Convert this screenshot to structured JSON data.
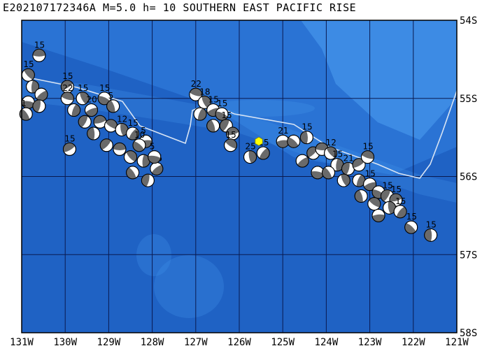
{
  "title": "E202107172346A M=5.0 h= 10 SOUTHERN EAST PACIFIC RISE",
  "x_ticks": [
    "131W",
    "130W",
    "129W",
    "128W",
    "127W",
    "126W",
    "125W",
    "124W",
    "123W",
    "122W",
    "121W"
  ],
  "y_ticks": [
    "54S",
    "55S",
    "56S",
    "57S",
    "58S"
  ],
  "colors": {
    "ocean_deep": "#1f62c4",
    "ocean_mid": "#2a73d4",
    "ocean_shallow": "#3d8be4",
    "grid": "#0a1a50",
    "ridge": "#d8e4f4",
    "beachball_dark": "#6a6a6a",
    "event_marker": "#ffff00"
  },
  "event": {
    "lon": -125.55,
    "lat": -55.55
  },
  "mechanisms": [
    {
      "lon": -130.6,
      "lat": -54.45,
      "label": "15"
    },
    {
      "lon": -130.85,
      "lat": -54.7,
      "label": "15"
    },
    {
      "lon": -130.75,
      "lat": -54.85,
      "label": ""
    },
    {
      "lon": -130.55,
      "lat": -54.95,
      "label": ""
    },
    {
      "lon": -130.85,
      "lat": -55.05,
      "label": ""
    },
    {
      "lon": -130.9,
      "lat": -55.2,
      "label": "1"
    },
    {
      "lon": -130.6,
      "lat": -55.1,
      "label": ""
    },
    {
      "lon": -129.95,
      "lat": -54.85,
      "label": "15"
    },
    {
      "lon": -129.95,
      "lat": -55.0,
      "label": "22"
    },
    {
      "lon": -129.6,
      "lat": -55.0,
      "label": "15"
    },
    {
      "lon": -129.8,
      "lat": -55.15,
      "label": ""
    },
    {
      "lon": -129.4,
      "lat": -55.15,
      "label": "20"
    },
    {
      "lon": -129.1,
      "lat": -55.0,
      "label": "15"
    },
    {
      "lon": -128.9,
      "lat": -55.1,
      "label": "5"
    },
    {
      "lon": -129.55,
      "lat": -55.3,
      "label": ""
    },
    {
      "lon": -129.2,
      "lat": -55.3,
      "label": ""
    },
    {
      "lon": -128.95,
      "lat": -55.35,
      "label": ""
    },
    {
      "lon": -128.7,
      "lat": -55.4,
      "label": "12"
    },
    {
      "lon": -128.45,
      "lat": -55.45,
      "label": "15"
    },
    {
      "lon": -128.15,
      "lat": -55.55,
      "label": "5"
    },
    {
      "lon": -128.3,
      "lat": -55.6,
      "label": "10"
    },
    {
      "lon": -129.35,
      "lat": -55.45,
      "label": ""
    },
    {
      "lon": -129.05,
      "lat": -55.6,
      "label": ""
    },
    {
      "lon": -128.75,
      "lat": -55.65,
      "label": ""
    },
    {
      "lon": -128.5,
      "lat": -55.75,
      "label": ""
    },
    {
      "lon": -128.2,
      "lat": -55.8,
      "label": ""
    },
    {
      "lon": -127.9,
      "lat": -55.9,
      "label": "15"
    },
    {
      "lon": -127.95,
      "lat": -55.75,
      "label": "5"
    },
    {
      "lon": -128.45,
      "lat": -55.95,
      "label": ""
    },
    {
      "lon": -128.1,
      "lat": -56.05,
      "label": ""
    },
    {
      "lon": -129.9,
      "lat": -55.65,
      "label": "15"
    },
    {
      "lon": -127.0,
      "lat": -54.95,
      "label": "22"
    },
    {
      "lon": -126.8,
      "lat": -55.05,
      "label": "18"
    },
    {
      "lon": -126.9,
      "lat": -55.2,
      "label": ""
    },
    {
      "lon": -126.6,
      "lat": -55.15,
      "label": "15"
    },
    {
      "lon": -126.4,
      "lat": -55.2,
      "label": "15"
    },
    {
      "lon": -126.6,
      "lat": -55.35,
      "label": ""
    },
    {
      "lon": -126.3,
      "lat": -55.35,
      "label": "15"
    },
    {
      "lon": -126.15,
      "lat": -55.45,
      "label": ""
    },
    {
      "lon": -126.2,
      "lat": -55.6,
      "label": "15"
    },
    {
      "lon": -125.75,
      "lat": -55.75,
      "label": "25"
    },
    {
      "lon": -125.45,
      "lat": -55.7,
      "label": "15"
    },
    {
      "lon": -125.0,
      "lat": -55.55,
      "label": "21"
    },
    {
      "lon": -124.75,
      "lat": -55.55,
      "label": ""
    },
    {
      "lon": -124.45,
      "lat": -55.5,
      "label": "15"
    },
    {
      "lon": -124.3,
      "lat": -55.7,
      "label": ""
    },
    {
      "lon": -124.1,
      "lat": -55.65,
      "label": ""
    },
    {
      "lon": -123.9,
      "lat": -55.7,
      "label": "12"
    },
    {
      "lon": -123.75,
      "lat": -55.85,
      "label": "15"
    },
    {
      "lon": -124.55,
      "lat": -55.8,
      "label": ""
    },
    {
      "lon": -124.2,
      "lat": -55.95,
      "label": ""
    },
    {
      "lon": -123.95,
      "lat": -55.95,
      "label": ""
    },
    {
      "lon": -123.5,
      "lat": -55.9,
      "label": "21"
    },
    {
      "lon": -123.25,
      "lat": -55.85,
      "label": ""
    },
    {
      "lon": -123.05,
      "lat": -55.75,
      "label": "15"
    },
    {
      "lon": -123.6,
      "lat": -56.05,
      "label": ""
    },
    {
      "lon": -123.25,
      "lat": -56.05,
      "label": ""
    },
    {
      "lon": -123.0,
      "lat": -56.1,
      "label": "15"
    },
    {
      "lon": -122.8,
      "lat": -56.2,
      "label": ""
    },
    {
      "lon": -123.2,
      "lat": -56.25,
      "label": ""
    },
    {
      "lon": -122.6,
      "lat": -56.25,
      "label": "15"
    },
    {
      "lon": -122.4,
      "lat": -56.3,
      "label": "15"
    },
    {
      "lon": -122.9,
      "lat": -56.35,
      "label": ""
    },
    {
      "lon": -122.55,
      "lat": -56.4,
      "label": ""
    },
    {
      "lon": -122.3,
      "lat": -56.45,
      "label": "15"
    },
    {
      "lon": -122.8,
      "lat": -56.5,
      "label": ""
    },
    {
      "lon": -122.05,
      "lat": -56.65,
      "label": "15"
    },
    {
      "lon": -121.6,
      "lat": -56.75,
      "label": "15"
    }
  ]
}
